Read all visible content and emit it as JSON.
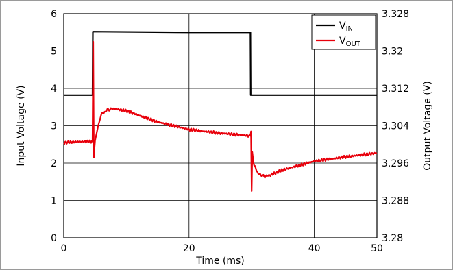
{
  "chart_data": {
    "type": "line",
    "xlabel": "Time (ms)",
    "ylabel_left": "Input Voltage (V)",
    "ylabel_right": "Output Voltage (V)",
    "xlim": [
      0,
      50
    ],
    "ylim_left": [
      0,
      6
    ],
    "ylim_right": [
      3.28,
      3.328
    ],
    "x_ticks": [
      "0",
      "20",
      "40",
      "50"
    ],
    "x_tick_values": [
      0,
      20,
      40,
      50
    ],
    "y_left_ticks": [
      "0",
      "1",
      "2",
      "3",
      "4",
      "5",
      "6"
    ],
    "y_right_ticks": [
      "3.28",
      "3.288",
      "3.296",
      "3.304",
      "3.312",
      "3.32",
      "3.328"
    ],
    "grid": true,
    "legend_position": "top-right",
    "series": [
      {
        "name": "V_IN",
        "label_main": "V",
        "label_sub": "IN",
        "color": "#000000",
        "axis": "left",
        "x": [
          0,
          4.6,
          4.65,
          20,
          29.8,
          29.85,
          50
        ],
        "y": [
          3.82,
          3.82,
          5.52,
          5.5,
          5.5,
          3.82,
          3.82
        ]
      },
      {
        "name": "V_OUT",
        "label_main": "V",
        "label_sub": "OUT",
        "color": "#e8000b",
        "axis": "left",
        "x": [
          0,
          2,
          4.6,
          4.7,
          4.8,
          4.9,
          5.0,
          5.5,
          6,
          7,
          8,
          10,
          15,
          20,
          25,
          29.8,
          29.9,
          30.0,
          30.1,
          30.3,
          31,
          32,
          33,
          35,
          40,
          45,
          50
        ],
        "y": [
          2.55,
          2.57,
          2.58,
          5.25,
          2.15,
          2.4,
          2.6,
          3.0,
          3.3,
          3.43,
          3.46,
          3.4,
          3.1,
          2.9,
          2.8,
          2.73,
          2.85,
          1.25,
          2.3,
          2.0,
          1.72,
          1.64,
          1.68,
          1.82,
          2.05,
          2.17,
          2.27
        ]
      }
    ]
  }
}
